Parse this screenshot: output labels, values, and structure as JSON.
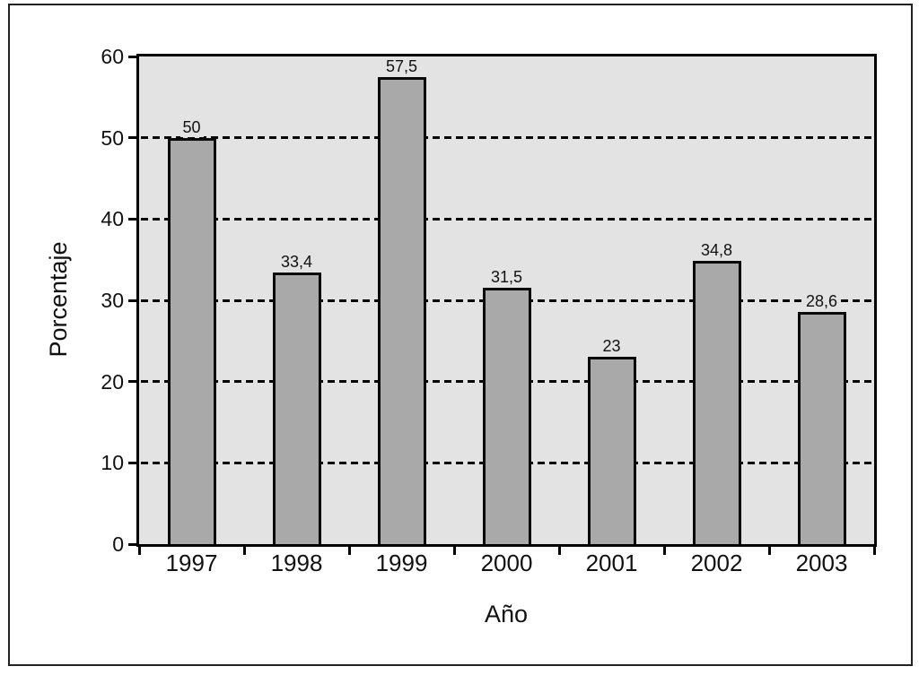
{
  "chart_data": {
    "type": "bar",
    "title": "",
    "xlabel": "Año",
    "ylabel": "Porcentaje",
    "categories": [
      "1997",
      "1998",
      "1999",
      "2000",
      "2001",
      "2002",
      "2003"
    ],
    "values": [
      50,
      33.4,
      57.5,
      31.5,
      23,
      34.8,
      28.6
    ],
    "value_labels": [
      "50",
      "33,4",
      "57,5",
      "31,5",
      "23",
      "34,8",
      "28,6"
    ],
    "ylim": [
      0,
      60
    ],
    "yticks": [
      0,
      10,
      20,
      30,
      40,
      50,
      60
    ],
    "gridline_values": [
      10,
      20,
      30,
      40,
      50
    ],
    "grid_style": "dashed-horizontal",
    "legend_position": "none",
    "colors": {
      "frame": "#222222",
      "axis": "#000000",
      "grid": "#000000",
      "plot_bg": "#e3e3e3",
      "bar_fill": "#a9a9a9",
      "bar_border": "#0a0a0a",
      "text": "#111111",
      "page_bg": "#ffffff"
    }
  }
}
